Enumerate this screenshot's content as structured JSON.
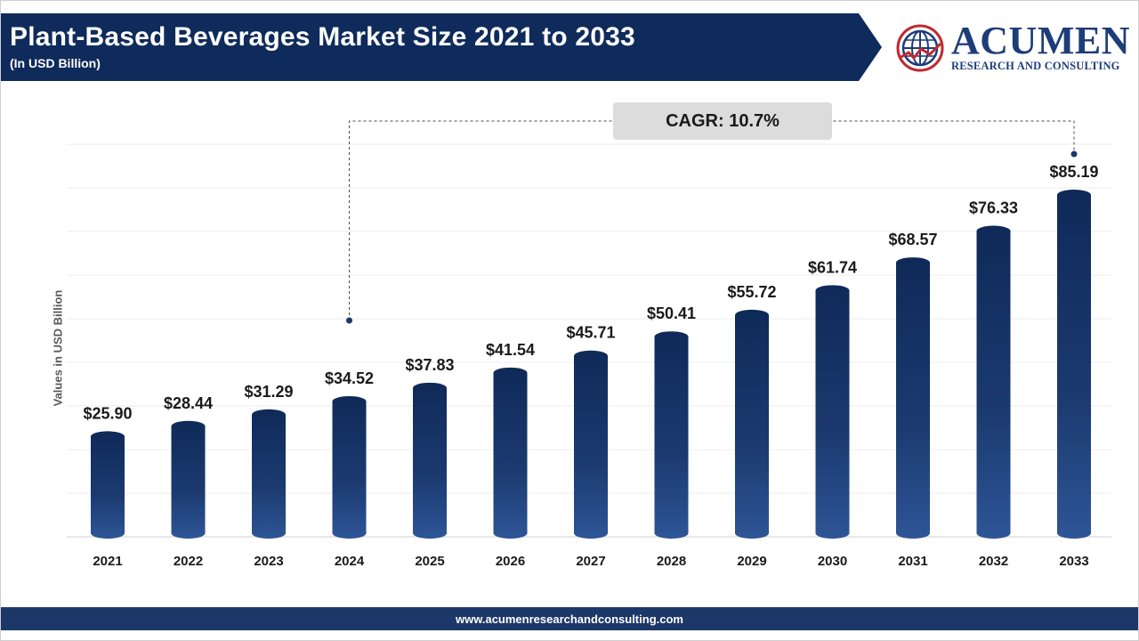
{
  "header": {
    "title": "Plant-Based Beverages Market Size 2021 to 2033",
    "subtitle": "(In USD Billion)"
  },
  "logo": {
    "word": "ACUMEN",
    "tagline": "RESEARCH AND CONSULTING"
  },
  "footer": {
    "url": "www.acumenresearchandconsulting.com"
  },
  "annotation": {
    "cagr": "CAGR: 10.7%"
  },
  "colors": {
    "header_bg": "#0f2b5b",
    "bar_top": "#0f2a58",
    "bar_bottom": "#2e5596",
    "cagr_box": "#dcdcdc",
    "logo": "#1d3d78",
    "footer_bg": "#1c3868"
  },
  "chart_data": {
    "type": "bar",
    "title": "Plant-Based Beverages Market Size 2021 to 2033",
    "subtitle": "(In USD Billion)",
    "ylabel": "Values in USD Billion",
    "xlabel": "",
    "categories": [
      "2021",
      "2022",
      "2023",
      "2024",
      "2025",
      "2026",
      "2027",
      "2028",
      "2029",
      "2030",
      "2031",
      "2032",
      "2033"
    ],
    "values": [
      25.9,
      28.44,
      31.29,
      34.52,
      37.83,
      41.54,
      45.71,
      50.41,
      55.72,
      61.74,
      68.57,
      76.33,
      85.19
    ],
    "value_labels": [
      "$25.90",
      "$28.44",
      "$31.29",
      "$34.52",
      "$37.83",
      "$41.54",
      "$45.71",
      "$50.41",
      "$55.72",
      "$61.74",
      "$68.57",
      "$76.33",
      "$85.19"
    ],
    "grid": true,
    "legend": "none"
  }
}
